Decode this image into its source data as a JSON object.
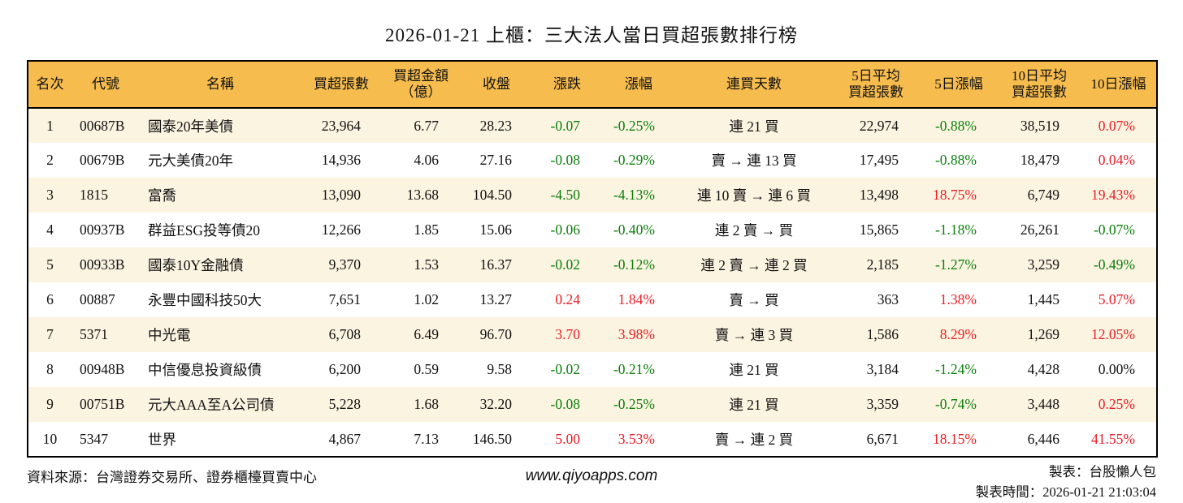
{
  "title": "2026-01-21 上櫃：三大法人當日買超張數排行榜",
  "colors": {
    "header_bg": "#F6BC4E",
    "row_alt_bg": "#FBF4E1",
    "up_red": "#EC1C24",
    "down_green": "#0B7E0B",
    "text": "#111111",
    "border": "#000000"
  },
  "table": {
    "columns": [
      {
        "key": "rank",
        "label": "名次",
        "align": "center"
      },
      {
        "key": "code",
        "label": "代號",
        "align": "left"
      },
      {
        "key": "name",
        "label": "名稱",
        "align": "left"
      },
      {
        "key": "buy_volume",
        "label": "買超張數",
        "align": "right"
      },
      {
        "key": "buy_amount",
        "label": "買超金額",
        "label2": "（億）",
        "align": "right"
      },
      {
        "key": "close",
        "label": "收盤",
        "align": "right"
      },
      {
        "key": "change",
        "label": "漲跌",
        "align": "right"
      },
      {
        "key": "change_pct",
        "label": "漲幅",
        "align": "right"
      },
      {
        "key": "streak",
        "label": "連買天數",
        "align": "center"
      },
      {
        "key": "avg5",
        "label": "5日平均",
        "label2": "買超張數",
        "align": "right"
      },
      {
        "key": "pct5",
        "label": "5日漲幅",
        "align": "right"
      },
      {
        "key": "avg10",
        "label": "10日平均",
        "label2": "買超張數",
        "align": "right"
      },
      {
        "key": "pct10",
        "label": "10日漲幅",
        "align": "right"
      }
    ],
    "rows": [
      {
        "rank": "1",
        "code": "00687B",
        "name": "國泰20年美債",
        "buy_volume": "23,964",
        "buy_amount": "6.77",
        "close": "28.23",
        "change": {
          "text": "-0.07",
          "tone": "down"
        },
        "change_pct": {
          "text": "-0.25%",
          "tone": "down"
        },
        "streak": "連 21 買",
        "avg5": "22,974",
        "pct5": {
          "text": "-0.88%",
          "tone": "down"
        },
        "avg10": "38,519",
        "pct10": {
          "text": "0.07%",
          "tone": "up"
        }
      },
      {
        "rank": "2",
        "code": "00679B",
        "name": "元大美債20年",
        "buy_volume": "14,936",
        "buy_amount": "4.06",
        "close": "27.16",
        "change": {
          "text": "-0.08",
          "tone": "down"
        },
        "change_pct": {
          "text": "-0.29%",
          "tone": "down"
        },
        "streak": "賣 → 連 13 買",
        "avg5": "17,495",
        "pct5": {
          "text": "-0.88%",
          "tone": "down"
        },
        "avg10": "18,479",
        "pct10": {
          "text": "0.04%",
          "tone": "up"
        }
      },
      {
        "rank": "3",
        "code": "1815",
        "name": "富喬",
        "buy_volume": "13,090",
        "buy_amount": "13.68",
        "close": "104.50",
        "change": {
          "text": "-4.50",
          "tone": "down"
        },
        "change_pct": {
          "text": "-4.13%",
          "tone": "down"
        },
        "streak": "連 10 賣 → 連 6 買",
        "avg5": "13,498",
        "pct5": {
          "text": "18.75%",
          "tone": "up"
        },
        "avg10": "6,749",
        "pct10": {
          "text": "19.43%",
          "tone": "up"
        }
      },
      {
        "rank": "4",
        "code": "00937B",
        "name": "群益ESG投等債20",
        "buy_volume": "12,266",
        "buy_amount": "1.85",
        "close": "15.06",
        "change": {
          "text": "-0.06",
          "tone": "down"
        },
        "change_pct": {
          "text": "-0.40%",
          "tone": "down"
        },
        "streak": "連 2 賣 → 買",
        "avg5": "15,865",
        "pct5": {
          "text": "-1.18%",
          "tone": "down"
        },
        "avg10": "26,261",
        "pct10": {
          "text": "-0.07%",
          "tone": "down"
        }
      },
      {
        "rank": "5",
        "code": "00933B",
        "name": "國泰10Y金融債",
        "buy_volume": "9,370",
        "buy_amount": "1.53",
        "close": "16.37",
        "change": {
          "text": "-0.02",
          "tone": "down"
        },
        "change_pct": {
          "text": "-0.12%",
          "tone": "down"
        },
        "streak": "連 2 賣 → 連 2 買",
        "avg5": "2,185",
        "pct5": {
          "text": "-1.27%",
          "tone": "down"
        },
        "avg10": "3,259",
        "pct10": {
          "text": "-0.49%",
          "tone": "down"
        }
      },
      {
        "rank": "6",
        "code": "00887",
        "name": "永豐中國科技50大",
        "buy_volume": "7,651",
        "buy_amount": "1.02",
        "close": "13.27",
        "change": {
          "text": "0.24",
          "tone": "up"
        },
        "change_pct": {
          "text": "1.84%",
          "tone": "up"
        },
        "streak": "賣 → 買",
        "avg5": "363",
        "pct5": {
          "text": "1.38%",
          "tone": "up"
        },
        "avg10": "1,445",
        "pct10": {
          "text": "5.07%",
          "tone": "up"
        }
      },
      {
        "rank": "7",
        "code": "5371",
        "name": "中光電",
        "buy_volume": "6,708",
        "buy_amount": "6.49",
        "close": "96.70",
        "change": {
          "text": "3.70",
          "tone": "up"
        },
        "change_pct": {
          "text": "3.98%",
          "tone": "up"
        },
        "streak": "賣 → 連 3 買",
        "avg5": "1,586",
        "pct5": {
          "text": "8.29%",
          "tone": "up"
        },
        "avg10": "1,269",
        "pct10": {
          "text": "12.05%",
          "tone": "up"
        }
      },
      {
        "rank": "8",
        "code": "00948B",
        "name": "中信優息投資級債",
        "buy_volume": "6,200",
        "buy_amount": "0.59",
        "close": "9.58",
        "change": {
          "text": "-0.02",
          "tone": "down"
        },
        "change_pct": {
          "text": "-0.21%",
          "tone": "down"
        },
        "streak": "連 21 買",
        "avg5": "3,184",
        "pct5": {
          "text": "-1.24%",
          "tone": "down"
        },
        "avg10": "4,428",
        "pct10": {
          "text": "0.00%",
          "tone": "flat"
        }
      },
      {
        "rank": "9",
        "code": "00751B",
        "name": "元大AAA至A公司債",
        "buy_volume": "5,228",
        "buy_amount": "1.68",
        "close": "32.20",
        "change": {
          "text": "-0.08",
          "tone": "down"
        },
        "change_pct": {
          "text": "-0.25%",
          "tone": "down"
        },
        "streak": "連 21 買",
        "avg5": "3,359",
        "pct5": {
          "text": "-0.74%",
          "tone": "down"
        },
        "avg10": "3,448",
        "pct10": {
          "text": "0.25%",
          "tone": "up"
        }
      },
      {
        "rank": "10",
        "code": "5347",
        "name": "世界",
        "buy_volume": "4,867",
        "buy_amount": "7.13",
        "close": "146.50",
        "change": {
          "text": "5.00",
          "tone": "up"
        },
        "change_pct": {
          "text": "3.53%",
          "tone": "up"
        },
        "streak": "賣 → 連 2 買",
        "avg5": "6,671",
        "pct5": {
          "text": "18.15%",
          "tone": "up"
        },
        "avg10": "6,446",
        "pct10": {
          "text": "41.55%",
          "tone": "up"
        }
      }
    ]
  },
  "footer": {
    "source": "資料來源：台灣證券交易所、證券櫃檯買賣中心",
    "website": "www.qiyoapps.com",
    "made_by": "製表：台股懶人包",
    "made_at": "製表時間：2026-01-21 21:03:04"
  }
}
